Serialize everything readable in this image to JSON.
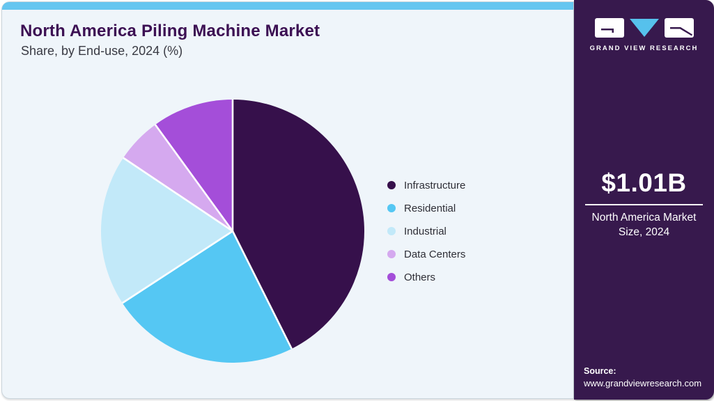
{
  "header": {
    "title": "North America Piling Machine Market",
    "subtitle": "Share, by End-use, 2024 (%)"
  },
  "chart_data": {
    "type": "pie",
    "title": "North America Piling Machine Market Share, by End-use, 2024 (%)",
    "unit": "%",
    "start_angle_deg": 0,
    "direction": "clockwise",
    "legend_position": "right",
    "series": [
      {
        "label": "Infrastructure",
        "value": 42.6,
        "color": "#36104B"
      },
      {
        "label": "Residential",
        "value": 23.2,
        "color": "#55C7F3"
      },
      {
        "label": "Industrial",
        "value": 18.6,
        "color": "#C2E9F9"
      },
      {
        "label": "Data Centers",
        "value": 5.6,
        "color": "#D5A9EF"
      },
      {
        "label": "Others",
        "value": 10.0,
        "color": "#A44ED9"
      }
    ]
  },
  "sidebar": {
    "logo_text": "GRAND VIEW RESEARCH",
    "market_size_value": "$1.01B",
    "market_size_label": "North America Market Size, 2024",
    "source_label": "Source:",
    "source_url": "www.grandviewresearch.com"
  },
  "theme": {
    "top_bar_color": "#66C6F0",
    "card_background": "#EFF5FA",
    "title_color": "#3C1053",
    "sidebar_background": "#37194D",
    "logo_accent_blue": "#56C1EC",
    "slice_divider_color": "#FFFFFF"
  }
}
